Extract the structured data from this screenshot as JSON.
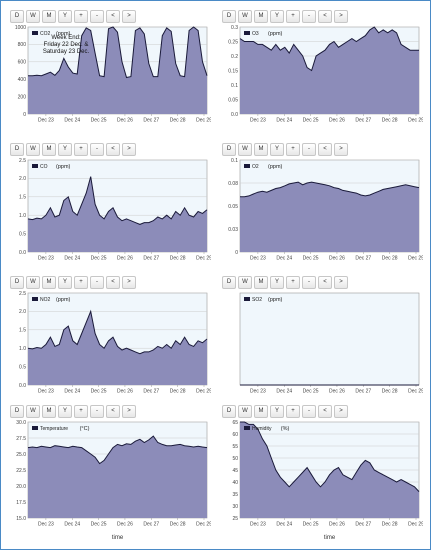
{
  "nav_buttons": [
    "D",
    "W",
    "M",
    "Y",
    "+",
    "-",
    "<",
    ">"
  ],
  "colors": {
    "plot_bg": "#f0f7fc",
    "fill": "#8c8cb9",
    "line": "#1a1a3a",
    "grid": "#cccccc"
  },
  "chart_data": [
    {
      "type": "area",
      "series": [
        {
          "name": "CO2",
          "values": [
            440,
            440,
            445,
            440,
            460,
            480,
            445,
            500,
            640,
            540,
            470,
            460,
            900,
            990,
            960,
            700,
            440,
            430,
            980,
            1000,
            940,
            600,
            420,
            430,
            960,
            990,
            920,
            580,
            430,
            430,
            900,
            990,
            950,
            580,
            440,
            430,
            960,
            1030,
            960,
            600,
            440
          ]
        }
      ],
      "ylim": [
        0,
        1000
      ],
      "yticks": [
        0,
        200,
        400,
        600,
        800,
        1000
      ],
      "ytick_labels": [
        "0",
        "200",
        "400",
        "600",
        "800",
        "1000"
      ],
      "legend": {
        "name": "CO2",
        "unit": "(ppm)"
      },
      "annotation": [
        "Week End:",
        "Friday 22 Dec. &",
        "Saturday 23 Dec."
      ],
      "x_ticks": [
        "Dec 23",
        "Dec 24",
        "Dec 25",
        "Dec 26",
        "Dec 27",
        "Dec 28",
        "Dec 29"
      ],
      "xlabel": ""
    },
    {
      "type": "area",
      "series": [
        {
          "name": "O3",
          "values": [
            0.26,
            0.25,
            0.25,
            0.25,
            0.24,
            0.24,
            0.23,
            0.22,
            0.24,
            0.22,
            0.23,
            0.21,
            0.24,
            0.22,
            0.2,
            0.16,
            0.15,
            0.2,
            0.21,
            0.22,
            0.24,
            0.25,
            0.23,
            0.24,
            0.25,
            0.26,
            0.25,
            0.26,
            0.27,
            0.29,
            0.3,
            0.28,
            0.29,
            0.28,
            0.29,
            0.28,
            0.24,
            0.23,
            0.22,
            0.22,
            0.22
          ]
        }
      ],
      "ylim": [
        0,
        0.3
      ],
      "yticks": [
        0,
        0.05,
        0.1,
        0.15,
        0.2,
        0.25,
        0.3
      ],
      "ytick_labels": [
        "0.0",
        "0.05",
        "0.1",
        "0.15",
        "0.2",
        "0.25",
        "0.3"
      ],
      "legend": {
        "name": "O3",
        "unit": "(ppm)"
      },
      "x_ticks": [
        "Dec 23",
        "Dec 24",
        "Dec 25",
        "Dec 26",
        "Dec 27",
        "Dec 28",
        "Dec 29"
      ],
      "xlabel": ""
    },
    {
      "type": "area",
      "series": [
        {
          "name": "CO",
          "values": [
            0.9,
            0.88,
            0.92,
            0.9,
            1.0,
            1.2,
            0.95,
            1.0,
            1.4,
            1.5,
            1.1,
            1.0,
            1.3,
            1.6,
            2.05,
            1.3,
            1.0,
            0.9,
            1.1,
            1.2,
            0.95,
            0.85,
            0.9,
            0.85,
            0.8,
            0.75,
            0.8,
            0.8,
            0.85,
            0.95,
            0.9,
            1.0,
            0.9,
            1.1,
            1.0,
            1.2,
            1.0,
            0.95,
            1.1,
            1.05,
            1.15
          ]
        }
      ],
      "ylim": [
        0,
        2.5
      ],
      "yticks": [
        0,
        0.5,
        1.0,
        1.5,
        2.0,
        2.5
      ],
      "ytick_labels": [
        "0.0",
        "0.5",
        "1.0",
        "1.5",
        "2.0",
        "2.5"
      ],
      "legend": {
        "name": "CO",
        "unit": "(ppm)"
      },
      "x_ticks": [
        "Dec 23",
        "Dec 24",
        "Dec 25",
        "Dec 26",
        "Dec 27",
        "Dec 28",
        "Dec 29"
      ],
      "xlabel": ""
    },
    {
      "type": "area",
      "series": [
        {
          "name": "O2",
          "values": [
            0.06,
            0.06,
            0.061,
            0.063,
            0.065,
            0.066,
            0.065,
            0.067,
            0.069,
            0.07,
            0.072,
            0.074,
            0.075,
            0.076,
            0.073,
            0.075,
            0.076,
            0.075,
            0.074,
            0.073,
            0.072,
            0.07,
            0.069,
            0.067,
            0.066,
            0.065,
            0.064,
            0.062,
            0.061,
            0.062,
            0.064,
            0.066,
            0.068,
            0.069,
            0.07,
            0.071,
            0.072,
            0.073,
            0.072,
            0.071,
            0.07
          ]
        }
      ],
      "ylim": [
        0,
        0.1
      ],
      "yticks": [
        0,
        0.025,
        0.05,
        0.075,
        0.1
      ],
      "ytick_labels": [
        "0",
        "0.03",
        "0.05",
        "0.08",
        "0.1"
      ],
      "legend": {
        "name": "O2",
        "unit": "(ppm)"
      },
      "x_ticks": [
        "Dec 23",
        "Dec 24",
        "Dec 25",
        "Dec 26",
        "Dec 27",
        "Dec 28",
        "Dec 29"
      ],
      "xlabel": ""
    },
    {
      "type": "area",
      "series": [
        {
          "name": "NO2",
          "values": [
            1.0,
            0.98,
            1.02,
            1.0,
            1.1,
            1.3,
            1.05,
            1.1,
            1.5,
            1.6,
            1.2,
            1.1,
            1.4,
            1.7,
            2.0,
            1.4,
            1.1,
            1.0,
            1.2,
            1.3,
            1.05,
            0.95,
            1.0,
            0.95,
            0.9,
            0.85,
            0.9,
            0.9,
            0.95,
            1.05,
            1.0,
            1.1,
            1.0,
            1.2,
            1.1,
            1.3,
            1.1,
            1.05,
            1.2,
            1.15,
            1.25
          ]
        }
      ],
      "ylim": [
        0,
        2.5
      ],
      "yticks": [
        0,
        0.5,
        1.0,
        1.5,
        2.0,
        2.5
      ],
      "ytick_labels": [
        "0.0",
        "0.5",
        "1.0",
        "1.5",
        "2.0",
        "2.5"
      ],
      "legend": {
        "name": "NO2",
        "unit": "(ppm)"
      },
      "x_ticks": [
        "Dec 23",
        "Dec 24",
        "Dec 25",
        "Dec 26",
        "Dec 27",
        "Dec 28",
        "Dec 29"
      ],
      "xlabel": ""
    },
    {
      "type": "area",
      "series": [
        {
          "name": "SO2",
          "values": [
            0,
            0,
            0,
            0,
            0,
            0,
            0,
            0,
            0,
            0,
            0,
            0,
            0,
            0,
            0,
            0,
            0,
            0,
            0,
            0,
            0,
            0,
            0,
            0,
            0,
            0,
            0,
            0,
            0,
            0,
            0,
            0,
            0,
            0,
            0,
            0,
            0,
            0,
            0,
            0,
            0
          ]
        }
      ],
      "ylim": [
        0,
        1
      ],
      "yticks": [],
      "ytick_labels": [],
      "legend": {
        "name": "SO2",
        "unit": "(ppm)"
      },
      "x_ticks": [
        "Dec 23",
        "Dec 24",
        "Dec 25",
        "Dec 26",
        "Dec 27",
        "Dec 28",
        "Dec 29"
      ],
      "xlabel": ""
    },
    {
      "type": "area",
      "series": [
        {
          "name": "Temperature",
          "values": [
            26.0,
            26.1,
            26.0,
            26.2,
            26.1,
            26.0,
            26.3,
            26.2,
            26.1,
            26.0,
            26.2,
            26.1,
            26.0,
            25.5,
            25.0,
            24.5,
            23.5,
            24.0,
            25.0,
            26.0,
            26.5,
            26.3,
            26.6,
            26.5,
            27.0,
            27.3,
            26.8,
            27.2,
            27.8,
            26.8,
            26.5,
            26.3,
            26.3,
            26.4,
            26.5,
            26.3,
            26.2,
            26.1,
            26.2,
            26.1,
            26.0
          ]
        }
      ],
      "ylim": [
        15,
        30
      ],
      "yticks": [
        15,
        17.5,
        20,
        22.5,
        25,
        27.5,
        30
      ],
      "ytick_labels": [
        "15.0",
        "17.5",
        "20.0",
        "22.5",
        "25.0",
        "27.5",
        "30.0"
      ],
      "legend": {
        "name": "Temperature",
        "unit": "(°C)"
      },
      "x_ticks": [
        "Dec 23",
        "Dec 24",
        "Dec 25",
        "Dec 26",
        "Dec 27",
        "Dec 28",
        "Dec 29"
      ],
      "xlabel": "time"
    },
    {
      "type": "area",
      "series": [
        {
          "name": "Humidity",
          "values": [
            65,
            65,
            64,
            64,
            62,
            58,
            55,
            50,
            45,
            42,
            40,
            38,
            40,
            42,
            44,
            46,
            43,
            40,
            38,
            40,
            43,
            45,
            46,
            43,
            42,
            41,
            44,
            47,
            49,
            48,
            45,
            44,
            43,
            42,
            41,
            40,
            41,
            40,
            39,
            38,
            36
          ]
        }
      ],
      "ylim": [
        25,
        65
      ],
      "yticks": [
        25,
        30,
        35,
        40,
        45,
        50,
        55,
        60,
        65
      ],
      "ytick_labels": [
        "25",
        "30",
        "35",
        "40",
        "45",
        "50",
        "55",
        "60",
        "65"
      ],
      "legend": {
        "name": "Humidity",
        "unit": "(%)"
      },
      "x_ticks": [
        "Dec 23",
        "Dec 24",
        "Dec 25",
        "Dec 26",
        "Dec 27",
        "Dec 28",
        "Dec 29"
      ],
      "xlabel": "time"
    }
  ]
}
